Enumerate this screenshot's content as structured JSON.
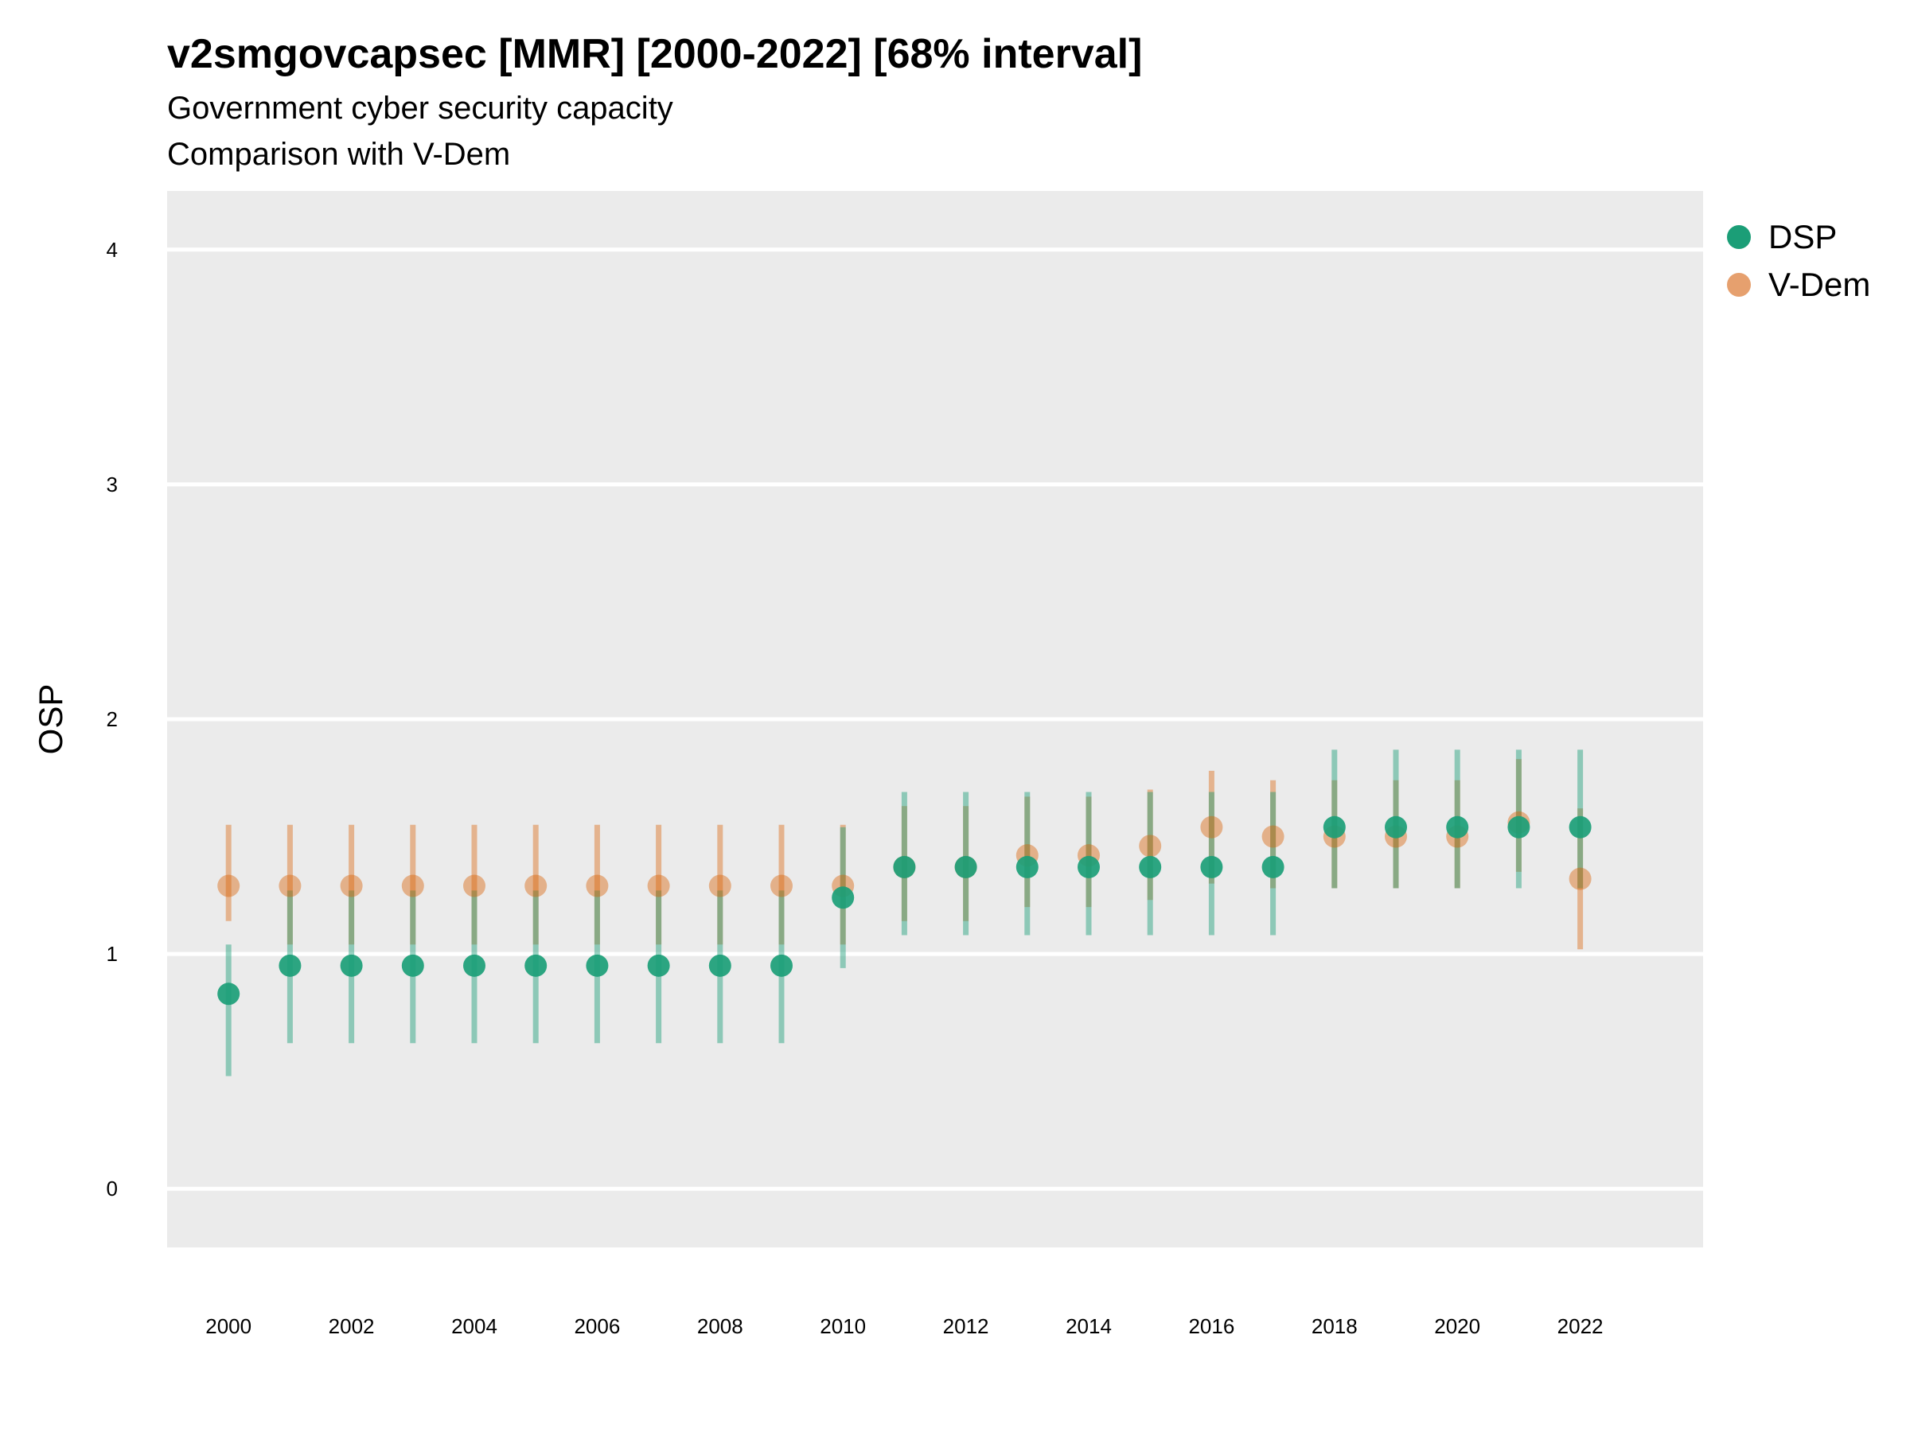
{
  "title": "v2smgovcapsec [MMR] [2000-2022] [68% interval]",
  "subtitle_line1": "Government cyber security capacity",
  "subtitle_line2": "Comparison with V-Dem",
  "colors": {
    "dsp": "#1b9e77",
    "vdem": "#d95f02",
    "panel": "#ebebeb",
    "grid": "#ffffff"
  },
  "legend": [
    {
      "label": "DSP",
      "color": "#1b9e77"
    },
    {
      "label": "V-Dem",
      "color": "#e6a06e"
    }
  ],
  "chart_data": {
    "type": "scatter",
    "title": "v2smgovcapsec [MMR] [2000-2022] [68% interval]",
    "subtitle": "Government cyber security capacity / Comparison with V-Dem",
    "xlabel": "",
    "ylabel": "OSP",
    "ylim": [
      -0.25,
      4.25
    ],
    "xlim": [
      1999,
      2024
    ],
    "yticks": [
      0,
      1,
      2,
      3,
      4
    ],
    "xticks": [
      2000,
      2002,
      2004,
      2006,
      2008,
      2010,
      2012,
      2014,
      2016,
      2018,
      2020,
      2022
    ],
    "grid": true,
    "legend_position": "right-top",
    "x": [
      2000,
      2001,
      2002,
      2003,
      2004,
      2005,
      2006,
      2007,
      2008,
      2009,
      2010,
      2011,
      2012,
      2013,
      2014,
      2015,
      2016,
      2017,
      2018,
      2019,
      2020,
      2021,
      2022
    ],
    "series": [
      {
        "name": "DSP",
        "values": [
          0.83,
          0.95,
          0.95,
          0.95,
          0.95,
          0.95,
          0.95,
          0.95,
          0.95,
          0.95,
          1.24,
          1.37,
          1.37,
          1.37,
          1.37,
          1.37,
          1.37,
          1.37,
          1.54,
          1.54,
          1.54,
          1.54,
          1.54
        ],
        "lower": [
          0.48,
          0.62,
          0.62,
          0.62,
          0.62,
          0.62,
          0.62,
          0.62,
          0.62,
          0.62,
          0.94,
          1.08,
          1.08,
          1.08,
          1.08,
          1.08,
          1.08,
          1.08,
          1.28,
          1.28,
          1.28,
          1.28,
          1.28
        ],
        "upper": [
          1.04,
          1.27,
          1.27,
          1.27,
          1.27,
          1.27,
          1.27,
          1.27,
          1.27,
          1.27,
          1.54,
          1.69,
          1.69,
          1.69,
          1.69,
          1.69,
          1.69,
          1.69,
          1.87,
          1.87,
          1.87,
          1.87,
          1.87
        ]
      },
      {
        "name": "V-Dem",
        "values": [
          1.29,
          1.29,
          1.29,
          1.29,
          1.29,
          1.29,
          1.29,
          1.29,
          1.29,
          1.29,
          1.29,
          1.37,
          1.37,
          1.42,
          1.42,
          1.46,
          1.54,
          1.5,
          1.5,
          1.5,
          1.5,
          1.56,
          1.32
        ],
        "lower": [
          1.14,
          1.04,
          1.04,
          1.04,
          1.04,
          1.04,
          1.04,
          1.04,
          1.04,
          1.04,
          1.04,
          1.14,
          1.14,
          1.2,
          1.2,
          1.23,
          1.3,
          1.28,
          1.28,
          1.28,
          1.28,
          1.35,
          1.02
        ],
        "upper": [
          1.55,
          1.55,
          1.55,
          1.55,
          1.55,
          1.55,
          1.55,
          1.55,
          1.55,
          1.55,
          1.55,
          1.63,
          1.63,
          1.67,
          1.67,
          1.7,
          1.78,
          1.74,
          1.74,
          1.74,
          1.74,
          1.83,
          1.62
        ]
      }
    ]
  }
}
